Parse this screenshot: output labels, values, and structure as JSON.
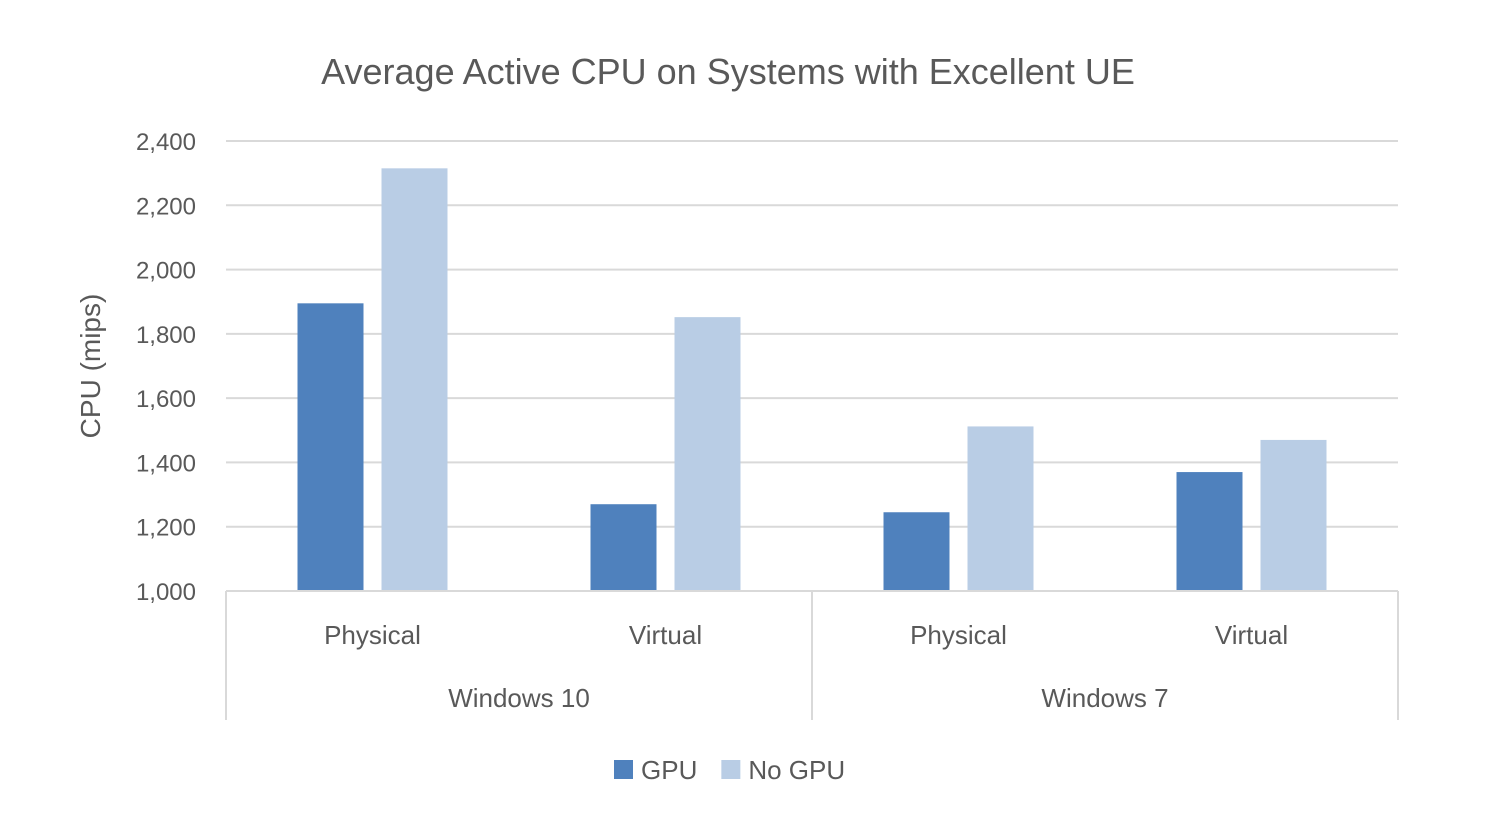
{
  "chart_data": {
    "type": "bar",
    "title": "Average Active CPU on Systems with Excellent UE",
    "xlabel": "",
    "ylabel": "CPU (mips)",
    "ylim": [
      1000,
      2400
    ],
    "yticks": [
      1000,
      1200,
      1400,
      1600,
      1800,
      2000,
      2200,
      2400
    ],
    "ytick_labels": [
      "1,000",
      "1,200",
      "1,400",
      "1,600",
      "1,800",
      "2,000",
      "2,200",
      "2,400"
    ],
    "groups": [
      {
        "label": "Windows 10",
        "categories": [
          "Physical",
          "Virtual"
        ]
      },
      {
        "label": "Windows 7",
        "categories": [
          "Physical",
          "Virtual"
        ]
      }
    ],
    "categories": [
      "Physical",
      "Virtual",
      "Physical",
      "Virtual"
    ],
    "series": [
      {
        "name": "GPU",
        "color": "#4f81bd",
        "values": [
          1895,
          1270,
          1245,
          1370
        ]
      },
      {
        "name": "No GPU",
        "color": "#b9cde5",
        "values": [
          2315,
          1852,
          1512,
          1470
        ]
      }
    ],
    "grid": true,
    "legend": "bottom"
  }
}
